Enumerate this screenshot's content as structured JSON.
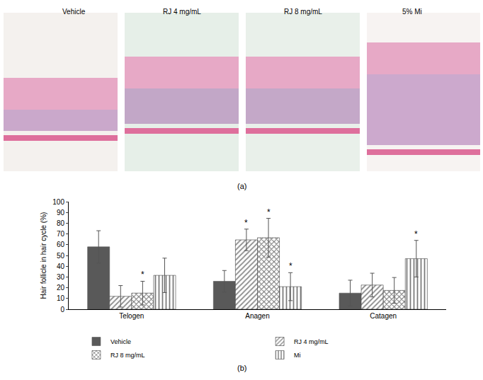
{
  "panel_a": {
    "label": "(a)",
    "images": [
      "Vehicle",
      "RJ 4 mg/mL",
      "RJ 8 mg/mL",
      "5% Mi"
    ]
  },
  "chart_data": {
    "type": "bar",
    "label": "(b)",
    "categories": [
      "Telogen",
      "Anagen",
      "Catagen"
    ],
    "ylabel": "Hair follicle in hair cycle (%)",
    "ylim": [
      0,
      100
    ],
    "yticks": [
      0,
      10,
      20,
      30,
      40,
      50,
      60,
      70,
      80,
      90,
      100
    ],
    "grid": false,
    "legend": "bottom",
    "series": [
      {
        "name": "Vehicle",
        "color": "#595959",
        "values": [
          58,
          26,
          15
        ],
        "errors": [
          15,
          10,
          12
        ],
        "marks": [
          null,
          null,
          null
        ]
      },
      {
        "name": "RJ 4 mg/mL",
        "color": "#8c8c8c",
        "values": [
          12,
          64.5,
          22.5
        ],
        "errors": [
          10,
          10,
          11
        ],
        "marks": [
          null,
          "*",
          null
        ]
      },
      {
        "name": "RJ 8 mg/mL",
        "color": "#6e6e6e",
        "values": [
          15,
          66.5,
          17.5
        ],
        "errors": [
          11,
          18,
          12
        ],
        "marks": [
          "*",
          "*",
          null
        ]
      },
      {
        "name": "Mi",
        "color": "#7a7a7a",
        "values": [
          31.5,
          21,
          47
        ],
        "errors": [
          16,
          13,
          17
        ],
        "marks": [
          null,
          "*",
          "*"
        ]
      }
    ]
  }
}
